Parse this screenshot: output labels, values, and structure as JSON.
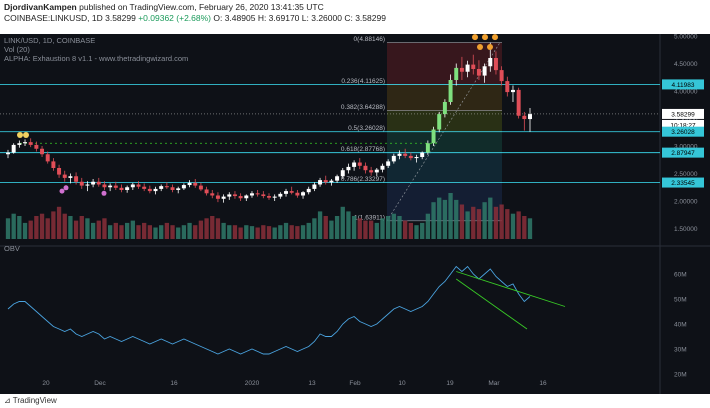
{
  "header": {
    "author": "DjordivanKampen",
    "published": "published on TradingView.com, February 26, 2020 13:41:35 UTC",
    "symbol": "COINBASE:LINKUSD, 1D",
    "last": "3.58299",
    "change": "+0.09362 (+2.68%)",
    "ohlc": {
      "o": "O: 3.48905",
      "h": "H: 3.69170",
      "l": "L: 3.26000",
      "c": "C: 3.58299"
    }
  },
  "overlays": {
    "pair": "LINK/USD, 1D, COINBASE",
    "vol": "Vol (20)",
    "indicator": "ALPHA: Exhaustion 8 v1.1 - www.thetradingwizard.com",
    "obv": "OBV"
  },
  "footer": {
    "brand": "TradingView"
  },
  "colors": {
    "bg": "#0e1117",
    "up": "#ffffff",
    "down": "#e04e58",
    "green_bar": "#3a9a67",
    "level_line": "#35c6d8",
    "obv_line": "#4aa3df",
    "trend_line": "#38c926"
  },
  "chart_data": {
    "type": "candlestick",
    "x_tick_labels": [
      "20",
      "Dec",
      "16",
      "2020",
      "13",
      "Feb",
      "10",
      "19",
      "Mar",
      "16"
    ],
    "y_ticks": [
      "5.00000",
      "4.50000",
      "4.00000",
      "3.50000",
      "3.00000",
      "2.50000",
      "2.00000",
      "1.50000"
    ],
    "price_labels": [
      {
        "value": "4.11983",
        "color": "#35c6d8"
      },
      {
        "value": "3.58299",
        "color": "#ffffff"
      },
      {
        "value": "10:18:27",
        "color": "#ffffff"
      },
      {
        "value": "3.26028",
        "color": "#35c6d8"
      },
      {
        "value": "2.87947",
        "color": "#35c6d8"
      },
      {
        "value": "2.33545",
        "color": "#35c6d8"
      }
    ],
    "fib_levels": [
      {
        "label": "0(4.88146)",
        "price": 4.88146
      },
      {
        "label": "0.236(4.11625)",
        "price": 4.11625
      },
      {
        "label": "0.382(3.64288)",
        "price": 3.64288
      },
      {
        "label": "0.5(3.26028)",
        "price": 3.26028
      },
      {
        "label": "0.618(2.87768)",
        "price": 2.87768
      },
      {
        "label": "0.786(2.33297)",
        "price": 2.33297
      },
      {
        "label": "1(1.63911)",
        "price": 1.63911
      }
    ],
    "horizontal_levels": [
      4.11983,
      3.26028,
      2.87947,
      2.33545
    ],
    "obv_ticks": [
      "60M",
      "50M",
      "40M",
      "30M",
      "20M"
    ],
    "candles": [
      [
        2.85,
        2.93,
        2.78,
        2.88
      ],
      [
        2.88,
        3.05,
        2.86,
        3.02
      ],
      [
        3.02,
        3.1,
        2.97,
        3.05
      ],
      [
        3.05,
        3.12,
        3.0,
        3.07
      ],
      [
        3.07,
        3.14,
        2.98,
        3.02
      ],
      [
        3.02,
        3.08,
        2.9,
        2.95
      ],
      [
        2.95,
        3.0,
        2.8,
        2.85
      ],
      [
        2.85,
        2.9,
        2.68,
        2.72
      ],
      [
        2.72,
        2.78,
        2.55,
        2.6
      ],
      [
        2.6,
        2.66,
        2.42,
        2.48
      ],
      [
        2.48,
        2.55,
        2.35,
        2.42
      ],
      [
        2.42,
        2.5,
        2.32,
        2.45
      ],
      [
        2.45,
        2.52,
        2.3,
        2.35
      ],
      [
        2.35,
        2.42,
        2.22,
        2.28
      ],
      [
        2.28,
        2.36,
        2.18,
        2.3
      ],
      [
        2.3,
        2.4,
        2.25,
        2.35
      ],
      [
        2.35,
        2.42,
        2.26,
        2.3
      ],
      [
        2.3,
        2.36,
        2.2,
        2.25
      ],
      [
        2.25,
        2.32,
        2.18,
        2.28
      ],
      [
        2.28,
        2.35,
        2.2,
        2.24
      ],
      [
        2.24,
        2.3,
        2.16,
        2.2
      ],
      [
        2.2,
        2.28,
        2.15,
        2.25
      ],
      [
        2.25,
        2.33,
        2.2,
        2.3
      ],
      [
        2.3,
        2.36,
        2.22,
        2.26
      ],
      [
        2.26,
        2.32,
        2.18,
        2.22
      ],
      [
        2.22,
        2.28,
        2.14,
        2.18
      ],
      [
        2.18,
        2.26,
        2.12,
        2.22
      ],
      [
        2.22,
        2.3,
        2.18,
        2.27
      ],
      [
        2.27,
        2.34,
        2.22,
        2.25
      ],
      [
        2.25,
        2.3,
        2.16,
        2.2
      ],
      [
        2.2,
        2.26,
        2.14,
        2.23
      ],
      [
        2.23,
        2.32,
        2.2,
        2.29
      ],
      [
        2.29,
        2.38,
        2.25,
        2.33
      ],
      [
        2.33,
        2.4,
        2.24,
        2.28
      ],
      [
        2.28,
        2.33,
        2.18,
        2.21
      ],
      [
        2.21,
        2.26,
        2.1,
        2.14
      ],
      [
        2.14,
        2.2,
        2.05,
        2.1
      ],
      [
        2.1,
        2.16,
        1.98,
        2.04
      ],
      [
        2.04,
        2.12,
        1.97,
        2.08
      ],
      [
        2.08,
        2.16,
        2.02,
        2.12
      ],
      [
        2.12,
        2.18,
        2.04,
        2.09
      ],
      [
        2.09,
        2.14,
        2.0,
        2.05
      ],
      [
        2.05,
        2.12,
        2.0,
        2.1
      ],
      [
        2.1,
        2.18,
        2.06,
        2.14
      ],
      [
        2.14,
        2.2,
        2.08,
        2.12
      ],
      [
        2.12,
        2.18,
        2.05,
        2.09
      ],
      [
        2.09,
        2.14,
        2.02,
        2.06
      ],
      [
        2.06,
        2.12,
        2.0,
        2.08
      ],
      [
        2.08,
        2.16,
        2.04,
        2.13
      ],
      [
        2.13,
        2.22,
        2.08,
        2.18
      ],
      [
        2.18,
        2.26,
        2.12,
        2.15
      ],
      [
        2.15,
        2.2,
        2.06,
        2.1
      ],
      [
        2.1,
        2.18,
        2.04,
        2.16
      ],
      [
        2.16,
        2.26,
        2.12,
        2.22
      ],
      [
        2.22,
        2.34,
        2.18,
        2.3
      ],
      [
        2.3,
        2.42,
        2.26,
        2.38
      ],
      [
        2.38,
        2.46,
        2.3,
        2.34
      ],
      [
        2.34,
        2.4,
        2.28,
        2.37
      ],
      [
        2.37,
        2.48,
        2.33,
        2.45
      ],
      [
        2.45,
        2.6,
        2.4,
        2.56
      ],
      [
        2.56,
        2.68,
        2.5,
        2.62
      ],
      [
        2.62,
        2.74,
        2.55,
        2.7
      ],
      [
        2.7,
        2.78,
        2.58,
        2.64
      ],
      [
        2.64,
        2.7,
        2.5,
        2.56
      ],
      [
        2.56,
        2.62,
        2.46,
        2.52
      ],
      [
        2.52,
        2.6,
        2.45,
        2.57
      ],
      [
        2.57,
        2.68,
        2.52,
        2.64
      ],
      [
        2.64,
        2.76,
        2.6,
        2.72
      ],
      [
        2.72,
        2.86,
        2.68,
        2.82
      ],
      [
        2.82,
        2.92,
        2.76,
        2.86
      ],
      [
        2.86,
        2.95,
        2.78,
        2.82
      ],
      [
        2.82,
        2.88,
        2.74,
        2.78
      ],
      [
        2.78,
        2.84,
        2.7,
        2.8
      ],
      [
        2.8,
        2.9,
        2.76,
        2.88
      ],
      [
        2.88,
        3.1,
        2.84,
        3.05
      ],
      [
        3.05,
        3.35,
        3.0,
        3.3
      ],
      [
        3.3,
        3.62,
        3.25,
        3.58
      ],
      [
        3.58,
        3.85,
        3.52,
        3.8
      ],
      [
        3.8,
        4.3,
        3.75,
        4.2
      ],
      [
        4.2,
        4.5,
        4.1,
        4.42
      ],
      [
        4.42,
        4.62,
        4.2,
        4.35
      ],
      [
        4.35,
        4.55,
        4.25,
        4.48
      ],
      [
        4.48,
        4.66,
        4.3,
        4.4
      ],
      [
        4.4,
        4.56,
        4.2,
        4.28
      ],
      [
        4.28,
        4.5,
        4.15,
        4.45
      ],
      [
        4.45,
        4.88,
        4.35,
        4.6
      ],
      [
        4.6,
        4.72,
        4.3,
        4.38
      ],
      [
        4.38,
        4.45,
        4.1,
        4.18
      ],
      [
        4.18,
        4.26,
        3.9,
        3.98
      ],
      [
        3.98,
        4.1,
        3.8,
        4.02
      ],
      [
        4.02,
        4.06,
        3.5,
        3.55
      ],
      [
        3.55,
        3.62,
        3.28,
        3.49
      ],
      [
        3.49,
        3.69,
        3.26,
        3.58
      ]
    ],
    "volume": [
      0.45,
      0.55,
      0.5,
      0.35,
      0.4,
      0.5,
      0.55,
      0.45,
      0.6,
      0.7,
      0.55,
      0.5,
      0.4,
      0.5,
      0.45,
      0.35,
      0.4,
      0.45,
      0.3,
      0.35,
      0.3,
      0.35,
      0.4,
      0.3,
      0.35,
      0.3,
      0.25,
      0.3,
      0.35,
      0.3,
      0.25,
      0.3,
      0.35,
      0.3,
      0.4,
      0.45,
      0.5,
      0.45,
      0.35,
      0.3,
      0.3,
      0.25,
      0.3,
      0.28,
      0.25,
      0.3,
      0.28,
      0.25,
      0.3,
      0.35,
      0.3,
      0.28,
      0.3,
      0.35,
      0.45,
      0.6,
      0.5,
      0.4,
      0.5,
      0.7,
      0.6,
      0.5,
      0.45,
      0.4,
      0.4,
      0.35,
      0.45,
      0.5,
      0.55,
      0.5,
      0.4,
      0.35,
      0.3,
      0.35,
      0.55,
      0.8,
      0.9,
      0.85,
      1.0,
      0.85,
      0.75,
      0.6,
      0.7,
      0.65,
      0.8,
      0.9,
      0.7,
      0.75,
      0.65,
      0.55,
      0.6,
      0.5,
      0.45
    ],
    "obv": [
      46,
      48,
      49,
      49,
      47,
      45,
      43,
      41,
      39,
      38,
      37,
      38,
      36,
      35,
      36,
      37,
      36,
      34,
      35,
      34,
      33,
      34,
      35,
      34,
      33,
      32,
      33,
      34,
      33,
      32,
      33,
      34,
      33,
      32,
      31,
      30,
      29,
      28,
      29,
      30,
      29,
      28,
      29,
      30,
      29,
      28,
      28,
      29,
      30,
      31,
      30,
      29,
      30,
      31,
      33,
      36,
      35,
      35,
      37,
      40,
      42,
      43,
      41,
      40,
      39,
      40,
      42,
      44,
      46,
      47,
      46,
      45,
      46,
      47,
      49,
      52,
      55,
      57,
      60,
      63,
      61,
      63,
      60,
      58,
      60,
      62,
      59,
      57,
      55,
      56,
      52,
      49,
      51
    ]
  }
}
